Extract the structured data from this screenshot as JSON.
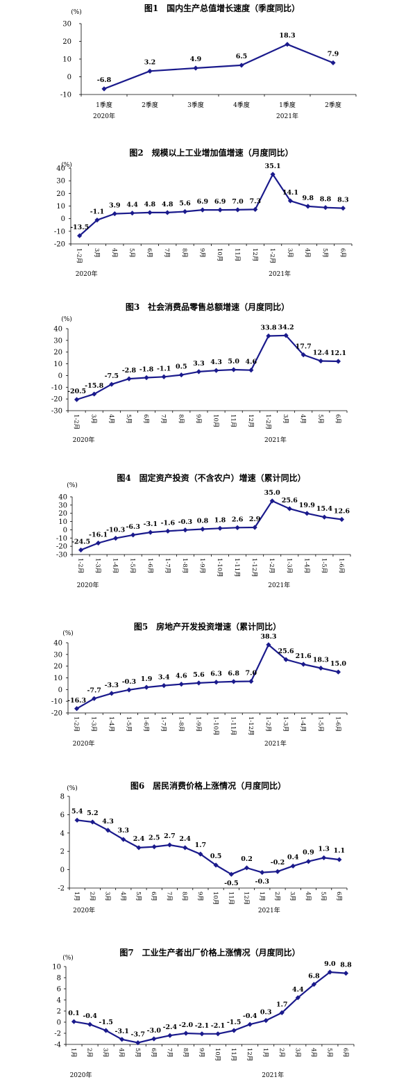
{
  "colors": {
    "line": "#1a1a8c",
    "axis": "#000000",
    "text": "#000000"
  },
  "chart_data": [
    {
      "type": "line",
      "title": "图1　国内生产总值增长速度（季度同比）",
      "unit": "(%)",
      "ylim": [
        -10,
        30
      ],
      "yticks": [
        "30",
        "20",
        "10",
        "0",
        "-10"
      ],
      "categories": [
        "1季度",
        "2季度",
        "3季度",
        "4季度",
        "1季度",
        "2季度"
      ],
      "values": [
        -6.8,
        3.2,
        4.9,
        6.5,
        18.3,
        7.9
      ],
      "year_labels": [
        "2020年",
        "2021年"
      ]
    },
    {
      "type": "line",
      "title": "图2　规模以上工业增加值增速（月度同比）",
      "unit": "(%)",
      "ylim": [
        -20,
        40
      ],
      "yticks": [
        "40",
        "30",
        "20",
        "10",
        "0",
        "-10",
        "-20"
      ],
      "categories": [
        "1-2月",
        "3月",
        "4月",
        "5月",
        "6月",
        "7月",
        "8月",
        "9月",
        "10月",
        "11月",
        "12月",
        "1-2月",
        "3月",
        "4月",
        "5月",
        "6月"
      ],
      "values": [
        -13.5,
        -1.1,
        3.9,
        4.4,
        4.8,
        4.8,
        5.6,
        6.9,
        6.9,
        7.0,
        7.3,
        35.1,
        14.1,
        9.8,
        8.8,
        8.3
      ],
      "year_labels": [
        "2020年",
        "2021年"
      ]
    },
    {
      "type": "line",
      "title": "图3　社会消费品零售总额增速（月度同比）",
      "unit": "(%)",
      "ylim": [
        -30,
        40
      ],
      "yticks": [
        "40",
        "30",
        "20",
        "10",
        "0",
        "-10",
        "-20",
        "-30"
      ],
      "categories": [
        "1-2月",
        "3月",
        "4月",
        "5月",
        "6月",
        "7月",
        "8月",
        "9月",
        "10月",
        "11月",
        "12月",
        "1-2月",
        "3月",
        "4月",
        "5月",
        "6月"
      ],
      "values": [
        -20.5,
        -15.8,
        -7.5,
        -2.8,
        -1.8,
        -1.1,
        0.5,
        3.3,
        4.3,
        5.0,
        4.6,
        33.8,
        34.2,
        17.7,
        12.4,
        12.1
      ],
      "year_labels": [
        "2020年",
        "2021年"
      ]
    },
    {
      "type": "line",
      "title": "图4　固定资产投资（不含农户）增速（累计同比）",
      "unit": "(%)",
      "ylim": [
        -30,
        40
      ],
      "yticks": [
        "40",
        "30",
        "20",
        "10",
        "0",
        "-10",
        "-20",
        "-30"
      ],
      "categories": [
        "1-2月",
        "1-3月",
        "1-4月",
        "1-5月",
        "1-6月",
        "1-7月",
        "1-8月",
        "1-9月",
        "1-10月",
        "1-11月",
        "1-12月",
        "1-2月",
        "1-3月",
        "1-4月",
        "1-5月",
        "1-6月"
      ],
      "values": [
        -24.5,
        -16.1,
        -10.3,
        -6.3,
        -3.1,
        -1.6,
        -0.3,
        0.8,
        1.8,
        2.6,
        2.9,
        35.0,
        25.6,
        19.9,
        15.4,
        12.6
      ],
      "year_labels": [
        "2020年",
        "2021年"
      ]
    },
    {
      "type": "line",
      "title": "图5　房地产开发投资增速（累计同比）",
      "unit": "(%)",
      "ylim": [
        -20,
        40
      ],
      "yticks": [
        "40",
        "30",
        "20",
        "10",
        "0",
        "-10",
        "-20"
      ],
      "categories": [
        "1-2月",
        "1-3月",
        "1-4月",
        "1-5月",
        "1-6月",
        "1-7月",
        "1-8月",
        "1-9月",
        "1-10月",
        "1-11月",
        "1-12月",
        "1-2月",
        "1-3月",
        "1-4月",
        "1-5月",
        "1-6月"
      ],
      "values": [
        -16.3,
        -7.7,
        -3.3,
        -0.3,
        1.9,
        3.4,
        4.6,
        5.6,
        6.3,
        6.8,
        7.0,
        38.3,
        25.6,
        21.6,
        18.3,
        15.0
      ],
      "year_labels": [
        "2020年",
        "2021年"
      ]
    },
    {
      "type": "line",
      "title": "图6　居民消费价格上涨情况（月度同比）",
      "unit": "(%)",
      "ylim": [
        -2,
        8
      ],
      "yticks": [
        "8",
        "6",
        "4",
        "2",
        "0",
        "-2"
      ],
      "categories": [
        "1月",
        "2月",
        "3月",
        "4月",
        "5月",
        "6月",
        "7月",
        "8月",
        "9月",
        "10月",
        "11月",
        "12月",
        "1月",
        "2月",
        "3月",
        "4月",
        "5月",
        "6月"
      ],
      "values": [
        5.4,
        5.2,
        4.3,
        3.3,
        2.4,
        2.5,
        2.7,
        2.4,
        1.7,
        0.5,
        -0.5,
        0.2,
        -0.3,
        -0.2,
        0.4,
        0.9,
        1.3,
        1.1
      ],
      "year_labels": [
        "2020年",
        "2021年"
      ]
    },
    {
      "type": "line",
      "title": "图7　工业生产者出厂价格上涨情况（月度同比）",
      "unit": "(%)",
      "ylim": [
        -4,
        10
      ],
      "yticks": [
        "10",
        "8",
        "6",
        "4",
        "2",
        "0",
        "-2",
        "-4"
      ],
      "categories": [
        "1月",
        "2月",
        "3月",
        "4月",
        "5月",
        "6月",
        "7月",
        "8月",
        "9月",
        "10月",
        "11月",
        "12月",
        "1月",
        "2月",
        "3月",
        "4月",
        "5月",
        "6月"
      ],
      "values": [
        0.1,
        -0.4,
        -1.5,
        -3.1,
        -3.7,
        -3.0,
        -2.4,
        -2.0,
        -2.1,
        -2.1,
        -1.5,
        -0.4,
        0.3,
        1.7,
        4.4,
        6.8,
        9.0,
        8.8
      ],
      "year_labels": [
        "2020年",
        "2021年"
      ]
    }
  ]
}
